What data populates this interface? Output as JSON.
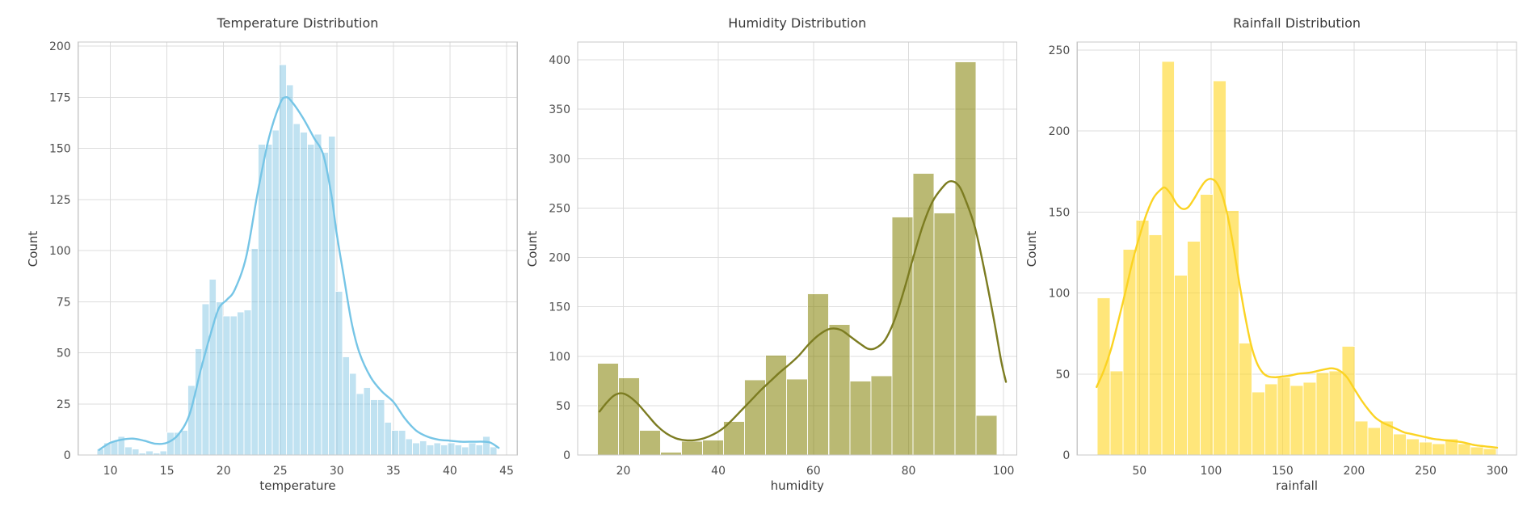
{
  "figure": {
    "background": "#ffffff",
    "grid_color": "#dcdcdc",
    "spine_color": "#c9c9c9",
    "tick_label_color": "#4d4d4d",
    "title_color": "#3a3a3a"
  },
  "chart_data": "see charts[]",
  "charts": [
    {
      "id": "temperature",
      "type": "histogram+kde",
      "title": "Temperature Distribution",
      "xlabel": "temperature",
      "ylabel": "Count",
      "bar_fill": "rgba(116,190,225,0.45)",
      "kde_color": "#76c5e6",
      "xlim": [
        7.15,
        45.95
      ],
      "ylim": [
        0,
        202
      ],
      "x_ticks": [
        10,
        15,
        20,
        25,
        30,
        35,
        40,
        45
      ],
      "y_ticks": [
        0,
        25,
        50,
        75,
        100,
        125,
        150,
        175,
        200
      ],
      "bins": {
        "start": 8.8,
        "width": 0.62
      },
      "counts": [
        3,
        6,
        7,
        9,
        4,
        3,
        1,
        2,
        1,
        2,
        11,
        11,
        12,
        34,
        52,
        74,
        86,
        75,
        68,
        68,
        70,
        71,
        101,
        152,
        152,
        159,
        191,
        181,
        162,
        158,
        152,
        157,
        148,
        156,
        80,
        48,
        40,
        30,
        33,
        27,
        27,
        16,
        12,
        12,
        8,
        6,
        7,
        5,
        6,
        5,
        6,
        5,
        4,
        6,
        5,
        9,
        4
      ],
      "kde": {
        "x": [
          9.0,
          10,
          11,
          12,
          13,
          14,
          15,
          16,
          17,
          18,
          19,
          19.6,
          20.3,
          21,
          22,
          23,
          24,
          25,
          25.5,
          26,
          27,
          28,
          28.8,
          29.5,
          30,
          30.6,
          31.3,
          32,
          33,
          34,
          35,
          36,
          37,
          38,
          39,
          40,
          41,
          42,
          43,
          43.6,
          44.3
        ],
        "y": [
          2.5,
          6,
          7.5,
          8,
          7,
          5.5,
          6,
          10,
          20,
          42,
          62,
          72,
          76,
          81,
          97,
          128,
          155,
          172,
          175,
          173,
          165,
          155,
          147,
          128,
          108,
          88,
          65,
          50,
          38,
          31,
          26,
          18,
          12,
          9,
          7.5,
          7,
          6.5,
          6.5,
          6.5,
          6,
          3.5
        ]
      }
    },
    {
      "id": "humidity",
      "type": "histogram+kde",
      "title": "Humidity Distribution",
      "xlabel": "humidity",
      "ylabel": "Count",
      "bar_fill": "rgba(130,128,0,0.55)",
      "kde_color": "#7c7c21",
      "xlim": [
        10.4,
        102.8
      ],
      "ylim": [
        0,
        418
      ],
      "x_ticks": [
        20,
        40,
        60,
        80,
        100
      ],
      "y_ticks": [
        0,
        50,
        100,
        150,
        200,
        250,
        300,
        350,
        400
      ],
      "bins": {
        "start": 14.6,
        "width": 4.42
      },
      "counts": [
        93,
        78,
        25,
        3,
        14,
        15,
        34,
        76,
        101,
        77,
        163,
        132,
        75,
        80,
        241,
        285,
        245,
        398,
        40
      ],
      "kde": {
        "x": [
          15,
          16.5,
          18,
          19.5,
          21,
          23,
          25,
          27,
          29,
          31,
          33,
          35,
          37,
          39,
          41,
          43,
          45,
          47,
          49,
          51,
          53,
          55,
          57,
          59,
          61,
          63,
          64.5,
          66,
          68,
          70,
          71.5,
          73,
          75,
          77,
          79,
          81,
          83,
          85,
          87,
          88.7,
          90.5,
          92,
          94,
          96,
          98,
          99.5,
          100.5
        ],
        "y": [
          44,
          53,
          60,
          62.5,
          60,
          52,
          41,
          30,
          22,
          17,
          15,
          15,
          17,
          21,
          27,
          36,
          46,
          56,
          66,
          75,
          84,
          92,
          101,
          112,
          121,
          127,
          128,
          126,
          119,
          112,
          107.5,
          108,
          116,
          136,
          166,
          200,
          232,
          256,
          270,
          277,
          273,
          258,
          230,
          186,
          136,
          95,
          74
        ]
      }
    },
    {
      "id": "rainfall",
      "type": "histogram+kde",
      "title": "Rainfall Distribution",
      "xlabel": "rainfall",
      "ylabel": "Count",
      "bar_fill": "rgba(255,214,40,0.62)",
      "kde_color": "#fbd323",
      "xlim": [
        6.5,
        313.5
      ],
      "ylim": [
        0,
        255
      ],
      "x_ticks": [
        50,
        100,
        150,
        200,
        250,
        300
      ],
      "y_ticks": [
        0,
        50,
        100,
        150,
        200,
        250
      ],
      "bins": {
        "start": 20.5,
        "width": 9.0
      },
      "counts": [
        97,
        52,
        127,
        145,
        136,
        243,
        111,
        132,
        161,
        231,
        151,
        69,
        39,
        44,
        48,
        43,
        45,
        51,
        52,
        67,
        21,
        17,
        21,
        13,
        10,
        8,
        7,
        10,
        7,
        5,
        4
      ],
      "kde": {
        "x": [
          20,
          25,
          30,
          35,
          40,
          45,
          50,
          55,
          60,
          65,
          68,
          72,
          76,
          80,
          84,
          88,
          92,
          96,
          100,
          104,
          108,
          112,
          116,
          120,
          124,
          128,
          132,
          136,
          140,
          145,
          150,
          155,
          160,
          165,
          170,
          175,
          180,
          185,
          190,
          195,
          200,
          205,
          210,
          215,
          220,
          225,
          230,
          235,
          240,
          245,
          250,
          255,
          260,
          265,
          270,
          275,
          280,
          285,
          290,
          295,
          300
        ],
        "y": [
          42,
          52,
          65,
          82,
          100,
          119,
          135,
          149,
          159,
          164,
          165,
          161,
          155,
          152,
          153,
          158,
          164,
          169,
          170.5,
          168,
          160,
          146,
          127,
          105,
          85,
          68,
          57,
          51,
          48.5,
          48,
          48.5,
          49,
          50,
          50.5,
          51,
          52,
          53,
          53.5,
          52,
          48,
          41,
          34,
          28,
          23,
          20,
          18,
          16,
          14,
          13,
          12,
          11,
          10,
          9.5,
          9,
          8.5,
          8,
          7,
          6,
          5.5,
          5,
          4.5
        ]
      }
    }
  ]
}
